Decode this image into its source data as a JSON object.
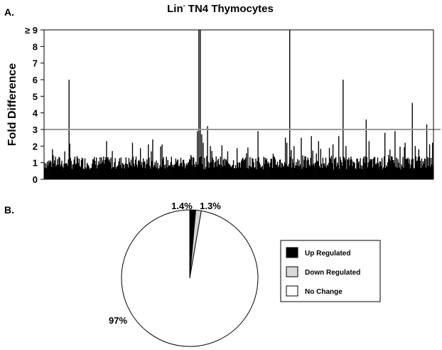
{
  "chart_data": [
    {
      "panel_label": "A.",
      "type": "bar",
      "title": {
        "prefix": "Lin",
        "superscript": "-",
        "rest": " TN4 Thymocytes"
      },
      "ylabel": "Fold Difference",
      "xlabel": "",
      "ylim": [
        0,
        9
      ],
      "yticks": [
        {
          "value": 0,
          "label": "0"
        },
        {
          "value": 1,
          "label": "1"
        },
        {
          "value": 2,
          "label": "2"
        },
        {
          "value": 3,
          "label": "3"
        },
        {
          "value": 4,
          "label": "4"
        },
        {
          "value": 5,
          "label": "5"
        },
        {
          "value": 6,
          "label": "6"
        },
        {
          "value": 7,
          "label": "7"
        },
        {
          "value": 8,
          "label": "8"
        },
        {
          "value": 9,
          "label": "≥ 9"
        }
      ],
      "threshold": 3,
      "threshold_color": "#999999",
      "bar_color": "#000000",
      "bar_count": 540,
      "baseline_range": [
        0.6,
        1.4
      ],
      "grid": false,
      "notable_bars": [
        {
          "index": 34,
          "value": 6.0
        },
        {
          "index": 86,
          "value": 2.3
        },
        {
          "index": 122,
          "value": 2.2
        },
        {
          "index": 144,
          "value": 2.1
        },
        {
          "index": 150,
          "value": 2.4
        },
        {
          "index": 212,
          "value": 2.9
        },
        {
          "index": 214,
          "value": 9
        },
        {
          "index": 216,
          "value": 9
        },
        {
          "index": 218,
          "value": 2.7
        },
        {
          "index": 220,
          "value": 2.2
        },
        {
          "index": 226,
          "value": 3.2
        },
        {
          "index": 230,
          "value": 2.0
        },
        {
          "index": 296,
          "value": 2.9
        },
        {
          "index": 334,
          "value": 2.5
        },
        {
          "index": 336,
          "value": 2.2
        },
        {
          "index": 340,
          "value": 9
        },
        {
          "index": 346,
          "value": 2.0
        },
        {
          "index": 356,
          "value": 2.5
        },
        {
          "index": 370,
          "value": 2.6
        },
        {
          "index": 380,
          "value": 2.3
        },
        {
          "index": 400,
          "value": 2.1
        },
        {
          "index": 408,
          "value": 2.6
        },
        {
          "index": 414,
          "value": 6.0
        },
        {
          "index": 418,
          "value": 2.0
        },
        {
          "index": 446,
          "value": 3.6
        },
        {
          "index": 450,
          "value": 2.3
        },
        {
          "index": 472,
          "value": 2.8
        },
        {
          "index": 486,
          "value": 2.9
        },
        {
          "index": 500,
          "value": 2.2
        },
        {
          "index": 510,
          "value": 4.6
        },
        {
          "index": 514,
          "value": 2.0
        },
        {
          "index": 530,
          "value": 3.3
        },
        {
          "index": 534,
          "value": 2.1
        },
        {
          "index": 538,
          "value": 2.2
        }
      ]
    },
    {
      "panel_label": "B.",
      "type": "pie",
      "slices": [
        {
          "name": "Up Regulated",
          "value": 1.4,
          "label": "1.4%",
          "color": "#000000"
        },
        {
          "name": "Down Regulated",
          "value": 1.3,
          "label": "1.3%",
          "color": "#d9d9d9"
        },
        {
          "name": "No Change",
          "value": 97,
          "label": "97%",
          "color": "#ffffff"
        }
      ],
      "legend_position": "right"
    }
  ]
}
